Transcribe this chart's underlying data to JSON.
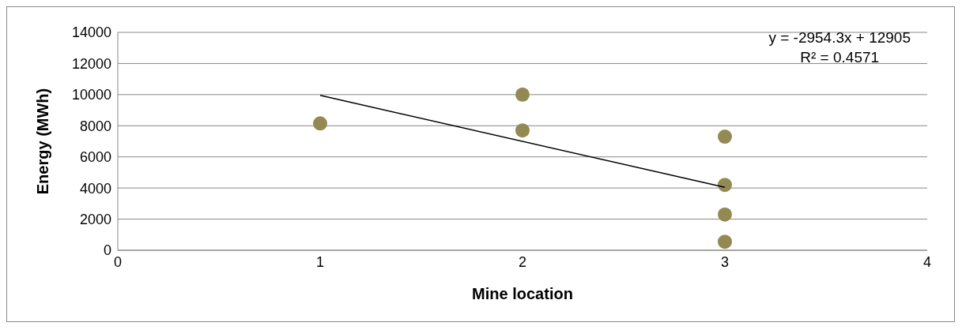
{
  "chart_data": {
    "type": "scatter",
    "xlabel": "Mine location",
    "ylabel": "Energy (MWh)",
    "annotations": [
      "y = -2954.3x + 12905",
      "R² = 0.4571"
    ],
    "xlim": [
      0,
      4
    ],
    "xticks": [
      0,
      1,
      2,
      3,
      4
    ],
    "ylim": [
      0,
      14000
    ],
    "yticks": [
      0,
      2000,
      4000,
      6000,
      8000,
      10000,
      12000,
      14000
    ],
    "grid": "y",
    "legend": false,
    "marker": "circle",
    "series": [
      {
        "color": "#938953",
        "x": [
          1,
          2,
          2,
          3,
          3,
          3,
          3
        ],
        "values": [
          8150,
          10000,
          7700,
          7300,
          4200,
          2300,
          550
        ]
      },
      {
        "type": "line",
        "color": "#000000",
        "x": [
          1,
          3
        ],
        "values": [
          9950,
          4040
        ],
        "marker": "none",
        "line_style": "solid"
      }
    ]
  }
}
